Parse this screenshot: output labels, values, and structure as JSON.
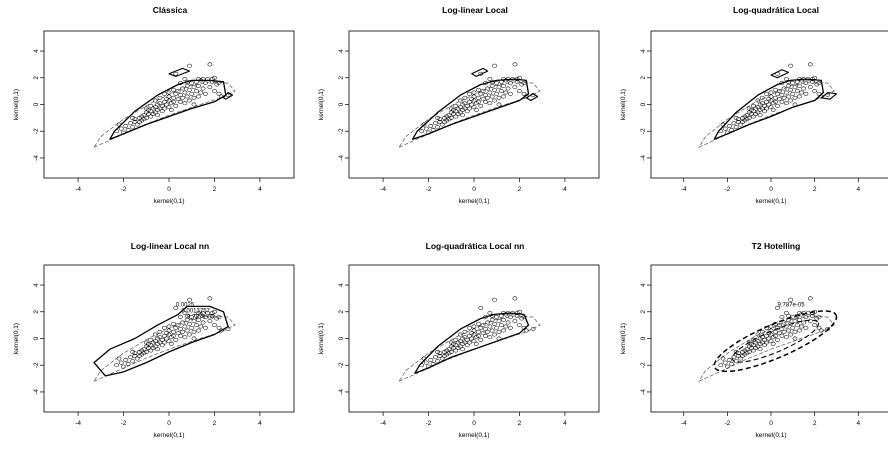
{
  "figure": {
    "chart_data": [
      {
        "type": "scatter",
        "title": "Clássica",
        "xlabel": "kernel(0,1)",
        "ylabel": "kernel(0,1)",
        "xlim": [
          -5.5,
          5.5
        ],
        "ylim": [
          -5.5,
          5.5
        ],
        "xticks": [
          "-4",
          "-2",
          "0",
          "2",
          "4"
        ],
        "yticks": [
          "-4",
          "-2",
          "0",
          "2",
          "4"
        ],
        "grid": false,
        "legend": "none",
        "points_shape": "ellipse",
        "contours": [
          {
            "style": "solid",
            "width": 1.3,
            "points": [
              [
                -2.6,
                -2.6
              ],
              [
                -2.0,
                -2.2
              ],
              [
                -1.0,
                -1.5
              ],
              [
                0.0,
                -0.9
              ],
              [
                1.0,
                -0.3
              ],
              [
                2.0,
                0.2
              ],
              [
                2.5,
                0.7
              ],
              [
                2.4,
                1.7
              ],
              [
                1.8,
                1.8
              ],
              [
                1.0,
                1.8
              ],
              [
                0.4,
                1.5
              ],
              [
                -0.5,
                0.7
              ],
              [
                -1.5,
                -0.5
              ],
              [
                -2.4,
                -2.0
              ],
              [
                -2.6,
                -2.6
              ]
            ]
          },
          {
            "style": "solid",
            "width": 1.1,
            "points": [
              [
                0.0,
                2.3
              ],
              [
                0.6,
                2.7
              ],
              [
                0.9,
                2.5
              ],
              [
                0.3,
                2.1
              ],
              [
                0.0,
                2.3
              ]
            ]
          },
          {
            "style": "solid",
            "width": 1.1,
            "points": [
              [
                2.4,
                0.5
              ],
              [
                2.6,
                0.9
              ],
              [
                2.8,
                0.7
              ],
              [
                2.5,
                0.4
              ],
              [
                2.4,
                0.5
              ]
            ]
          }
        ],
        "contour_labels": []
      },
      {
        "type": "scatter",
        "title": "Log-linear Local",
        "xlabel": "kernel(0,1)",
        "ylabel": "kernel(0,1)",
        "xlim": [
          -5.5,
          5.5
        ],
        "ylim": [
          -5.5,
          5.5
        ],
        "xticks": [
          "-4",
          "-2",
          "0",
          "2",
          "4"
        ],
        "yticks": [
          "-4",
          "-2",
          "0",
          "2",
          "4"
        ],
        "grid": false,
        "legend": "none",
        "points_shape": "ellipse",
        "contours": [
          {
            "style": "solid",
            "width": 1.3,
            "points": [
              [
                -2.7,
                -2.6
              ],
              [
                -2.0,
                -2.2
              ],
              [
                -1.0,
                -1.5
              ],
              [
                0.0,
                -0.9
              ],
              [
                1.0,
                -0.3
              ],
              [
                2.0,
                0.3
              ],
              [
                2.4,
                0.8
              ],
              [
                2.3,
                1.8
              ],
              [
                1.8,
                1.9
              ],
              [
                1.0,
                1.8
              ],
              [
                0.3,
                1.5
              ],
              [
                -0.6,
                0.7
              ],
              [
                -1.6,
                -0.6
              ],
              [
                -2.5,
                -2.0
              ],
              [
                -2.7,
                -2.6
              ]
            ]
          },
          {
            "style": "solid",
            "width": 1.1,
            "points": [
              [
                -0.1,
                2.3
              ],
              [
                0.4,
                2.7
              ],
              [
                0.6,
                2.5
              ],
              [
                0.1,
                2.1
              ],
              [
                -0.1,
                2.3
              ]
            ]
          },
          {
            "style": "solid",
            "width": 1.1,
            "points": [
              [
                2.3,
                0.5
              ],
              [
                2.6,
                0.8
              ],
              [
                2.8,
                0.6
              ],
              [
                2.5,
                0.3
              ],
              [
                2.3,
                0.5
              ]
            ]
          }
        ],
        "contour_labels": []
      },
      {
        "type": "scatter",
        "title": "Log-quadrática Local",
        "xlabel": "kernel(0,1)",
        "ylabel": "kernel(0,1)",
        "xlim": [
          -5.5,
          5.5
        ],
        "ylim": [
          -5.5,
          5.5
        ],
        "xticks": [
          "-4",
          "-2",
          "0",
          "2",
          "4"
        ],
        "yticks": [
          "-4",
          "-2",
          "0",
          "2",
          "4"
        ],
        "grid": false,
        "legend": "none",
        "points_shape": "ellipse",
        "contours": [
          {
            "style": "solid",
            "width": 1.3,
            "points": [
              [
                -2.6,
                -2.6
              ],
              [
                -2.0,
                -2.2
              ],
              [
                -1.0,
                -1.5
              ],
              [
                0.0,
                -0.9
              ],
              [
                1.0,
                -0.2
              ],
              [
                2.0,
                0.3
              ],
              [
                2.4,
                0.9
              ],
              [
                2.3,
                1.8
              ],
              [
                1.6,
                1.9
              ],
              [
                0.9,
                1.8
              ],
              [
                0.3,
                1.5
              ],
              [
                -0.6,
                0.7
              ],
              [
                -1.6,
                -0.6
              ],
              [
                -2.4,
                -2.0
              ],
              [
                -2.6,
                -2.6
              ]
            ]
          },
          {
            "style": "solid",
            "width": 1.1,
            "points": [
              [
                0.0,
                2.2
              ],
              [
                0.5,
                2.6
              ],
              [
                0.8,
                2.4
              ],
              [
                0.3,
                2.0
              ],
              [
                0.0,
                2.2
              ]
            ]
          },
          {
            "style": "solid",
            "width": 1.1,
            "points": [
              [
                2.3,
                0.5
              ],
              [
                2.6,
                0.9
              ],
              [
                3.0,
                0.8
              ],
              [
                2.7,
                0.4
              ],
              [
                2.3,
                0.5
              ]
            ]
          }
        ],
        "contour_labels": []
      },
      {
        "type": "scatter",
        "title": "Log-linear Local nn",
        "xlabel": "kernel(0,1)",
        "ylabel": "kernel(0,1)",
        "xlim": [
          -5.5,
          5.5
        ],
        "ylim": [
          -5.5,
          5.5
        ],
        "xticks": [
          "-4",
          "-2",
          "0",
          "2",
          "4"
        ],
        "yticks": [
          "-4",
          "-2",
          "0",
          "2",
          "4"
        ],
        "grid": false,
        "legend": "none",
        "points_shape": "ellipse",
        "contours": [
          {
            "style": "solid",
            "width": 1.3,
            "points": [
              [
                -2.8,
                -2.8
              ],
              [
                -2.0,
                -2.5
              ],
              [
                -1.0,
                -1.8
              ],
              [
                0.0,
                -1.0
              ],
              [
                1.0,
                -0.3
              ],
              [
                2.0,
                0.3
              ],
              [
                2.6,
                0.9
              ],
              [
                2.4,
                2.0
              ],
              [
                1.8,
                2.4
              ],
              [
                0.8,
                2.4
              ],
              [
                0.4,
                1.8
              ],
              [
                -0.5,
                1.0
              ],
              [
                -1.5,
                0.0
              ],
              [
                -2.6,
                -0.8
              ],
              [
                -3.3,
                -1.8
              ],
              [
                -2.8,
                -2.8
              ]
            ]
          }
        ],
        "contour_labels": [
          "0.0025",
          "0.0013757",
          "9.787e-05"
        ]
      },
      {
        "type": "scatter",
        "title": "Log-quadrática Local nn",
        "xlabel": "kernel(0,1)",
        "ylabel": "kernel(0,1)",
        "xlim": [
          -5.5,
          5.5
        ],
        "ylim": [
          -5.5,
          5.5
        ],
        "xticks": [
          "-4",
          "-2",
          "0",
          "2",
          "4"
        ],
        "yticks": [
          "-4",
          "-2",
          "0",
          "2",
          "4"
        ],
        "grid": false,
        "legend": "none",
        "points_shape": "ellipse",
        "contours": [
          {
            "style": "solid",
            "width": 1.3,
            "points": [
              [
                -2.6,
                -2.6
              ],
              [
                -2.0,
                -2.2
              ],
              [
                -1.0,
                -1.4
              ],
              [
                0.0,
                -0.8
              ],
              [
                1.0,
                -0.2
              ],
              [
                2.0,
                0.4
              ],
              [
                2.4,
                1.0
              ],
              [
                2.2,
                1.8
              ],
              [
                1.6,
                1.9
              ],
              [
                0.9,
                1.8
              ],
              [
                0.3,
                1.5
              ],
              [
                -0.6,
                0.7
              ],
              [
                -1.6,
                -0.6
              ],
              [
                -2.4,
                -2.0
              ],
              [
                -2.6,
                -2.6
              ]
            ]
          }
        ],
        "contour_labels": []
      },
      {
        "type": "scatter",
        "title": "T2 Hotelling",
        "xlabel": "kernel(0,1)",
        "ylabel": "kernel(0,1)",
        "xlim": [
          -5.5,
          5.5
        ],
        "ylim": [
          -5.5,
          5.5
        ],
        "xticks": [
          "-4",
          "-2",
          "0",
          "2",
          "4"
        ],
        "yticks": [
          "-4",
          "-2",
          "0",
          "2",
          "4"
        ],
        "grid": false,
        "legend": "none",
        "points_shape": "ellipse",
        "contours": [
          {
            "style": "dashed",
            "width": 1.5,
            "ellipse": {
              "cx": 0.2,
              "cy": -0.2,
              "rx": 3.4,
              "ry": 1.0,
              "angle": 35
            }
          },
          {
            "style": "dashed",
            "width": 1.1,
            "ellipse": {
              "cx": 0.2,
              "cy": -0.2,
              "rx": 2.4,
              "ry": 0.65,
              "angle": 35
            }
          }
        ],
        "contour_labels": [
          "9.787e-05"
        ]
      }
    ],
    "reference_contour": {
      "style": "dashed",
      "color": "#555555",
      "points": [
        [
          -3.3,
          -3.2
        ],
        [
          -2.5,
          -2.6
        ],
        [
          -1.2,
          -1.6
        ],
        [
          0.0,
          -0.8
        ],
        [
          1.2,
          -0.1
        ],
        [
          2.3,
          0.5
        ],
        [
          2.9,
          1.0
        ],
        [
          2.6,
          1.6
        ],
        [
          1.8,
          1.7
        ],
        [
          0.9,
          1.4
        ],
        [
          0.2,
          0.9
        ],
        [
          -0.8,
          0.1
        ],
        [
          -2.0,
          -1.1
        ],
        [
          -3.0,
          -2.4
        ],
        [
          -3.3,
          -3.2
        ]
      ]
    },
    "scatter_points": [
      [
        -2.3,
        -2.0
      ],
      [
        -2.1,
        -1.8
      ],
      [
        -2.0,
        -2.1
      ],
      [
        -1.9,
        -1.6
      ],
      [
        -1.8,
        -1.9
      ],
      [
        -1.7,
        -1.4
      ],
      [
        -1.6,
        -1.7
      ],
      [
        -1.5,
        -1.3
      ],
      [
        -1.5,
        -1.1
      ],
      [
        -1.4,
        -1.5
      ],
      [
        -1.3,
        -1.0
      ],
      [
        -1.3,
        -1.3
      ],
      [
        -1.2,
        -0.9
      ],
      [
        -1.2,
        -1.2
      ],
      [
        -1.1,
        -0.8
      ],
      [
        -1.1,
        -1.1
      ],
      [
        -1.0,
        -0.6
      ],
      [
        -1.0,
        -1.0
      ],
      [
        -0.9,
        -0.7
      ],
      [
        -0.9,
        -0.4
      ],
      [
        -0.8,
        -0.9
      ],
      [
        -0.8,
        -0.5
      ],
      [
        -0.7,
        -0.3
      ],
      [
        -0.7,
        -0.7
      ],
      [
        -0.6,
        -0.6
      ],
      [
        -0.6,
        -0.2
      ],
      [
        -0.5,
        -0.4
      ],
      [
        -0.5,
        0.0
      ],
      [
        -0.5,
        -0.8
      ],
      [
        -0.4,
        -0.3
      ],
      [
        -0.4,
        0.1
      ],
      [
        -0.3,
        -0.5
      ],
      [
        -0.3,
        -0.1
      ],
      [
        -0.2,
        0.2
      ],
      [
        -0.2,
        -0.3
      ],
      [
        -0.1,
        0.0
      ],
      [
        -0.1,
        0.4
      ],
      [
        0.0,
        -0.2
      ],
      [
        0.0,
        0.3
      ],
      [
        0.0,
        0.6
      ],
      [
        0.1,
        0.1
      ],
      [
        0.1,
        -0.4
      ],
      [
        0.2,
        0.5
      ],
      [
        0.2,
        0.2
      ],
      [
        0.3,
        0.8
      ],
      [
        0.3,
        -0.1
      ],
      [
        0.4,
        0.4
      ],
      [
        0.4,
        1.0
      ],
      [
        0.5,
        0.2
      ],
      [
        0.5,
        0.7
      ],
      [
        0.6,
        1.2
      ],
      [
        0.6,
        0.5
      ],
      [
        0.7,
        0.9
      ],
      [
        0.7,
        0.1
      ],
      [
        0.8,
        1.4
      ],
      [
        0.8,
        0.6
      ],
      [
        0.9,
        1.1
      ],
      [
        0.9,
        0.3
      ],
      [
        1.0,
        1.6
      ],
      [
        1.0,
        0.8
      ],
      [
        1.1,
        1.3
      ],
      [
        1.1,
        0.5
      ],
      [
        1.2,
        1.7
      ],
      [
        1.2,
        1.0
      ],
      [
        1.3,
        0.6
      ],
      [
        1.3,
        1.4
      ],
      [
        1.4,
        1.8
      ],
      [
        1.4,
        0.9
      ],
      [
        1.5,
        1.2
      ],
      [
        1.6,
        1.6
      ],
      [
        1.6,
        0.8
      ],
      [
        1.7,
        1.9
      ],
      [
        1.8,
        1.3
      ],
      [
        1.9,
        1.7
      ],
      [
        2.0,
        1.0
      ],
      [
        2.1,
        1.5
      ],
      [
        2.2,
        0.8
      ],
      [
        2.0,
        2.0
      ],
      [
        0.9,
        2.9
      ],
      [
        1.8,
        3.0
      ],
      [
        2.3,
        0.6
      ],
      [
        2.6,
        0.7
      ],
      [
        0.3,
        2.3
      ],
      [
        -0.2,
        0.8
      ],
      [
        -1.6,
        -1.0
      ],
      [
        -0.8,
        -0.1
      ],
      [
        0.5,
        1.6
      ],
      [
        1.5,
        1.9
      ],
      [
        0.2,
        1.1
      ],
      [
        -0.4,
        0.5
      ],
      [
        -1.0,
        -0.3
      ],
      [
        1.1,
        0.0
      ],
      [
        0.7,
        1.9
      ],
      [
        1.9,
        1.9
      ],
      [
        2.2,
        1.6
      ],
      [
        1.3,
        1.9
      ],
      [
        -2.2,
        -1.5
      ],
      [
        -0.6,
        0.3
      ],
      [
        0.0,
        0.9
      ],
      [
        0.8,
        1.7
      ]
    ]
  }
}
